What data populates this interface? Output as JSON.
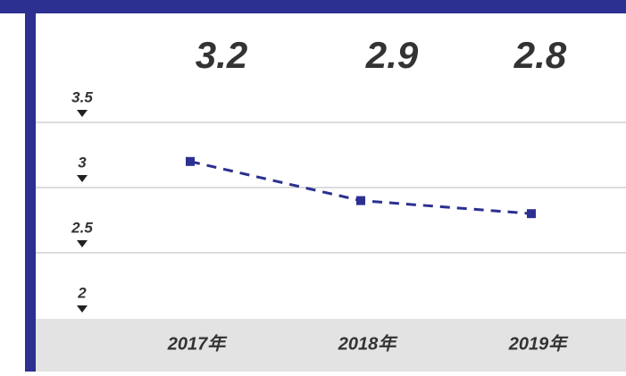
{
  "chart_data": {
    "type": "line",
    "categories": [
      "2017年",
      "2018年",
      "2019年"
    ],
    "values": [
      3.2,
      2.9,
      2.8
    ],
    "color": "#2c3090",
    "ylim": [
      2,
      3.5
    ],
    "yticks": [
      3.5,
      3,
      2.5,
      2
    ],
    "grid": true
  }
}
